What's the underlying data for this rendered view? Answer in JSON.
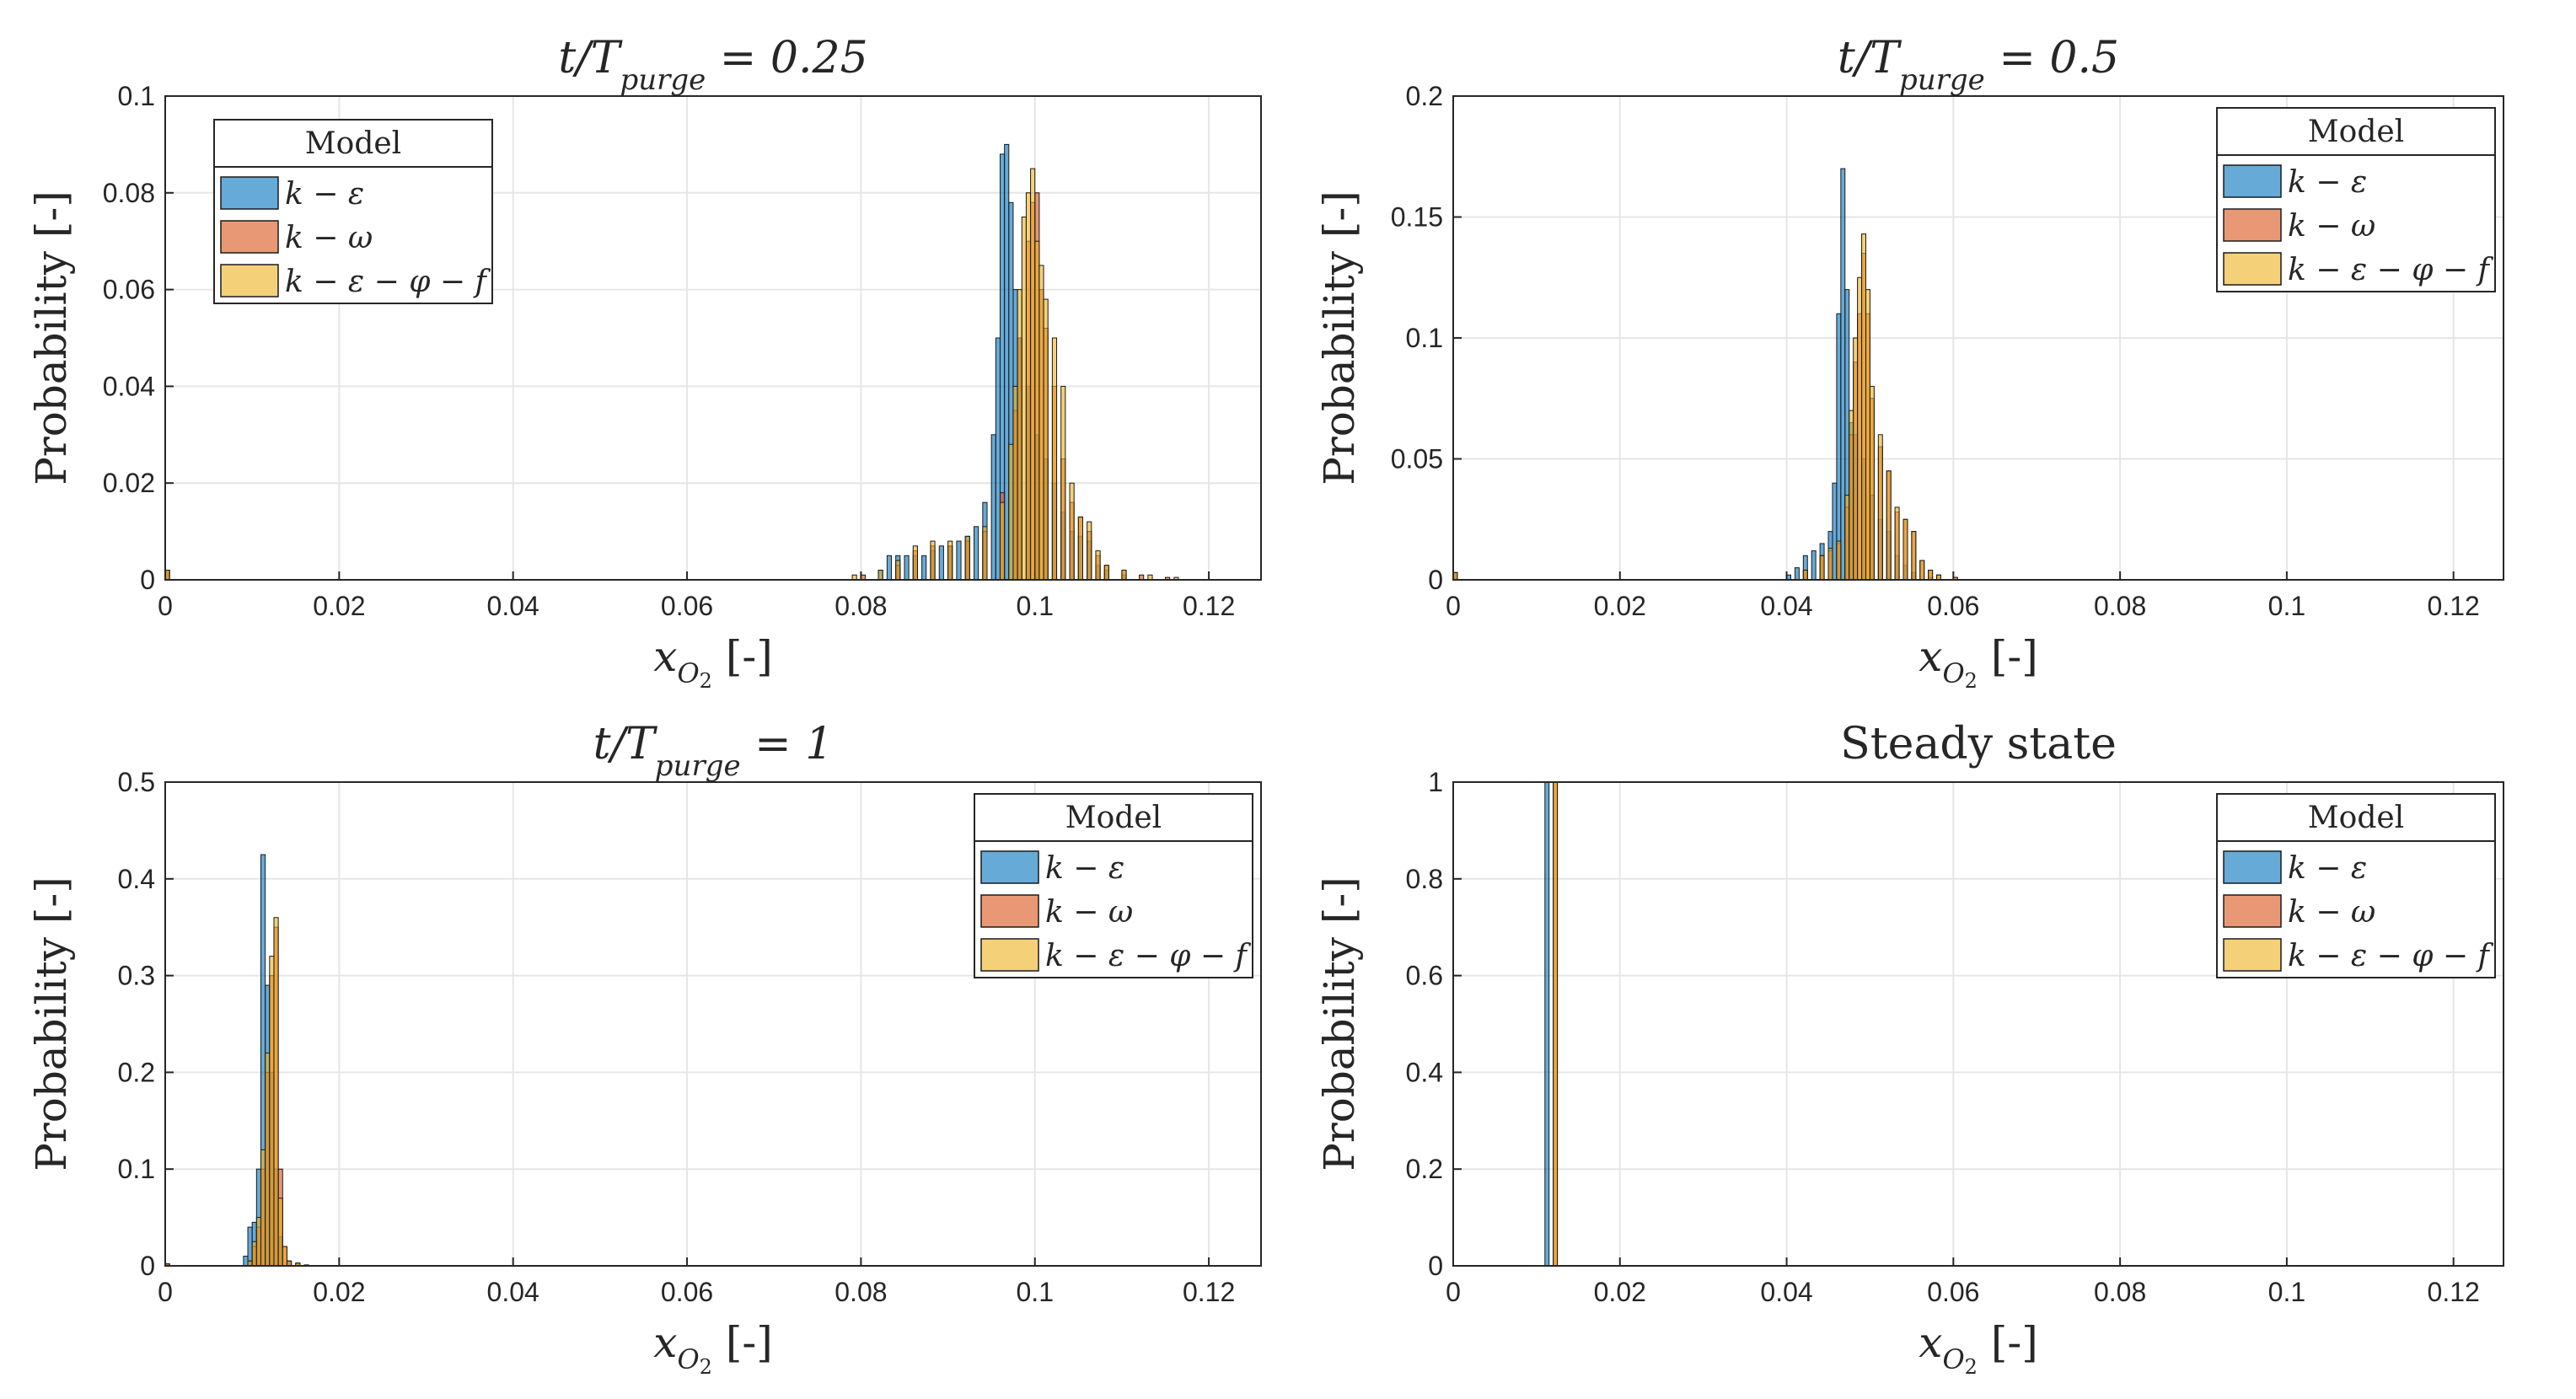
{
  "figure": {
    "bin_width": 0.0005
  },
  "chart_data": [
    {
      "type": "bar",
      "title": "t/T_purge = 0.25",
      "xlabel": "x_O2 [-]",
      "ylabel": "Probability [-]",
      "xlim": [
        0,
        0.126
      ],
      "ylim": [
        0,
        0.1
      ],
      "xticks": [
        "0",
        "0.02",
        "0.04",
        "0.06",
        "0.08",
        "0.1",
        "0.12"
      ],
      "yticks": [
        "0",
        "0.02",
        "0.04",
        "0.06",
        "0.08",
        "0.1"
      ],
      "grid": true,
      "legend": {
        "title": "Model",
        "position": "top-left",
        "entries": [
          "k − ε",
          "k − ω",
          "k − ε − φ − f"
        ]
      },
      "series": [
        {
          "name": "k − ε",
          "color": "#0072BD",
          "points": [
            [
              0.0,
              0.002
            ],
            [
              0.082,
              0.002
            ],
            [
              0.083,
              0.005
            ],
            [
              0.084,
              0.005
            ],
            [
              0.085,
              0.005
            ],
            [
              0.086,
              0.005
            ],
            [
              0.087,
              0.005
            ],
            [
              0.088,
              0.006
            ],
            [
              0.089,
              0.007
            ],
            [
              0.09,
              0.007
            ],
            [
              0.091,
              0.008
            ],
            [
              0.092,
              0.009
            ],
            [
              0.093,
              0.011
            ],
            [
              0.094,
              0.016
            ],
            [
              0.095,
              0.03
            ],
            [
              0.0955,
              0.05
            ],
            [
              0.096,
              0.088
            ],
            [
              0.0965,
              0.09
            ],
            [
              0.097,
              0.078
            ],
            [
              0.0975,
              0.06
            ],
            [
              0.098,
              0.05
            ],
            [
              0.099,
              0.04
            ],
            [
              0.1,
              0.03
            ],
            [
              0.101,
              0.025
            ],
            [
              0.102,
              0.02
            ],
            [
              0.103,
              0.014
            ],
            [
              0.104,
              0.01
            ],
            [
              0.105,
              0.009
            ],
            [
              0.106,
              0.008
            ],
            [
              0.107,
              0.003
            ],
            [
              0.108,
              0.002
            ],
            [
              0.11,
              0.001
            ]
          ]
        },
        {
          "name": "k − ω",
          "color": "#D95319",
          "points": [
            [
              0.0,
              0.002
            ],
            [
              0.08,
              0.001
            ],
            [
              0.084,
              0.003
            ],
            [
              0.086,
              0.006
            ],
            [
              0.088,
              0.007
            ],
            [
              0.09,
              0.007
            ],
            [
              0.092,
              0.008
            ],
            [
              0.094,
              0.01
            ],
            [
              0.096,
              0.018
            ],
            [
              0.0975,
              0.035
            ],
            [
              0.098,
              0.05
            ],
            [
              0.099,
              0.07
            ],
            [
              0.0995,
              0.078
            ],
            [
              0.1,
              0.08
            ],
            [
              0.1005,
              0.06
            ],
            [
              0.101,
              0.052
            ],
            [
              0.102,
              0.04
            ],
            [
              0.103,
              0.025
            ],
            [
              0.104,
              0.016
            ],
            [
              0.105,
              0.013
            ],
            [
              0.106,
              0.01
            ],
            [
              0.107,
              0.005
            ],
            [
              0.108,
              0.003
            ],
            [
              0.11,
              0.002
            ],
            [
              0.112,
              0.001
            ],
            [
              0.115,
              0.0005
            ]
          ]
        },
        {
          "name": "k − ε − φ − f",
          "color": "#EDB120",
          "points": [
            [
              0.0,
              0.002
            ],
            [
              0.079,
              0.001
            ],
            [
              0.082,
              0.002
            ],
            [
              0.084,
              0.004
            ],
            [
              0.086,
              0.007
            ],
            [
              0.088,
              0.008
            ],
            [
              0.09,
              0.008
            ],
            [
              0.092,
              0.009
            ],
            [
              0.094,
              0.011
            ],
            [
              0.096,
              0.016
            ],
            [
              0.097,
              0.028
            ],
            [
              0.0975,
              0.04
            ],
            [
              0.098,
              0.06
            ],
            [
              0.0985,
              0.075
            ],
            [
              0.099,
              0.08
            ],
            [
              0.0995,
              0.085
            ],
            [
              0.1,
              0.07
            ],
            [
              0.1005,
              0.065
            ],
            [
              0.101,
              0.058
            ],
            [
              0.102,
              0.05
            ],
            [
              0.103,
              0.04
            ],
            [
              0.104,
              0.02
            ],
            [
              0.105,
              0.013
            ],
            [
              0.106,
              0.012
            ],
            [
              0.107,
              0.006
            ],
            [
              0.108,
              0.003
            ],
            [
              0.11,
              0.002
            ],
            [
              0.113,
              0.001
            ],
            [
              0.116,
              0.0005
            ]
          ]
        }
      ]
    },
    {
      "type": "bar",
      "title": "t/T_purge = 0.5",
      "xlabel": "x_O2 [-]",
      "ylabel": "Probability [-]",
      "xlim": [
        0,
        0.126
      ],
      "ylim": [
        0,
        0.2
      ],
      "xticks": [
        "0",
        "0.02",
        "0.04",
        "0.06",
        "0.08",
        "0.1",
        "0.12"
      ],
      "yticks": [
        "0",
        "0.05",
        "0.1",
        "0.15",
        "0.2"
      ],
      "grid": true,
      "legend": {
        "title": "Model",
        "position": "top-right",
        "entries": [
          "k − ε",
          "k − ω",
          "k − ε − φ − f"
        ]
      },
      "series": [
        {
          "name": "k − ε",
          "color": "#0072BD",
          "points": [
            [
              0.0,
              0.003
            ],
            [
              0.04,
              0.002
            ],
            [
              0.041,
              0.005
            ],
            [
              0.042,
              0.01
            ],
            [
              0.043,
              0.012
            ],
            [
              0.044,
              0.015
            ],
            [
              0.045,
              0.02
            ],
            [
              0.0455,
              0.04
            ],
            [
              0.046,
              0.11
            ],
            [
              0.0465,
              0.17
            ],
            [
              0.047,
              0.12
            ],
            [
              0.0475,
              0.065
            ],
            [
              0.048,
              0.06
            ],
            [
              0.049,
              0.05
            ],
            [
              0.05,
              0.035
            ],
            [
              0.051,
              0.025
            ],
            [
              0.052,
              0.02
            ],
            [
              0.053,
              0.01
            ],
            [
              0.054,
              0.006
            ],
            [
              0.055,
              0.003
            ],
            [
              0.057,
              0.001
            ]
          ]
        },
        {
          "name": "k − ω",
          "color": "#D95319",
          "points": [
            [
              0.0,
              0.003
            ],
            [
              0.042,
              0.004
            ],
            [
              0.044,
              0.01
            ],
            [
              0.045,
              0.012
            ],
            [
              0.046,
              0.015
            ],
            [
              0.047,
              0.03
            ],
            [
              0.0475,
              0.06
            ],
            [
              0.048,
              0.09
            ],
            [
              0.0485,
              0.11
            ],
            [
              0.049,
              0.135
            ],
            [
              0.0495,
              0.11
            ],
            [
              0.05,
              0.075
            ],
            [
              0.051,
              0.055
            ],
            [
              0.052,
              0.045
            ],
            [
              0.053,
              0.028
            ],
            [
              0.054,
              0.025
            ],
            [
              0.055,
              0.02
            ],
            [
              0.056,
              0.008
            ],
            [
              0.057,
              0.004
            ],
            [
              0.058,
              0.002
            ],
            [
              0.06,
              0.001
            ]
          ]
        },
        {
          "name": "k − ε − φ − f",
          "color": "#EDB120",
          "points": [
            [
              0.0,
              0.003
            ],
            [
              0.042,
              0.004
            ],
            [
              0.044,
              0.01
            ],
            [
              0.045,
              0.013
            ],
            [
              0.046,
              0.016
            ],
            [
              0.047,
              0.035
            ],
            [
              0.0475,
              0.07
            ],
            [
              0.048,
              0.1
            ],
            [
              0.0485,
              0.125
            ],
            [
              0.049,
              0.143
            ],
            [
              0.0495,
              0.12
            ],
            [
              0.05,
              0.08
            ],
            [
              0.051,
              0.06
            ],
            [
              0.052,
              0.045
            ],
            [
              0.053,
              0.03
            ],
            [
              0.054,
              0.025
            ],
            [
              0.055,
              0.02
            ],
            [
              0.056,
              0.008
            ],
            [
              0.057,
              0.004
            ],
            [
              0.058,
              0.002
            ],
            [
              0.06,
              0.001
            ]
          ]
        }
      ]
    },
    {
      "type": "bar",
      "title": "t/T_purge = 1",
      "xlabel": "x_O2 [-]",
      "ylabel": "Probability [-]",
      "xlim": [
        0,
        0.126
      ],
      "ylim": [
        0,
        0.5
      ],
      "xticks": [
        "0",
        "0.02",
        "0.04",
        "0.06",
        "0.08",
        "0.1",
        "0.12"
      ],
      "yticks": [
        "0",
        "0.1",
        "0.2",
        "0.3",
        "0.4",
        "0.5"
      ],
      "grid": true,
      "legend": {
        "title": "Model",
        "position": "top-right",
        "entries": [
          "k − ε",
          "k − ω",
          "k − ε − φ − f"
        ]
      },
      "series": [
        {
          "name": "k − ε",
          "color": "#0072BD",
          "points": [
            [
              0.0,
              0.002
            ],
            [
              0.009,
              0.01
            ],
            [
              0.0095,
              0.04
            ],
            [
              0.01,
              0.045
            ],
            [
              0.0105,
              0.1
            ],
            [
              0.011,
              0.425
            ],
            [
              0.0115,
              0.29
            ],
            [
              0.012,
              0.2
            ],
            [
              0.0125,
              0.1
            ],
            [
              0.013,
              0.03
            ],
            [
              0.014,
              0.005
            ]
          ]
        },
        {
          "name": "k − ω",
          "color": "#D95319",
          "points": [
            [
              0.0,
              0.002
            ],
            [
              0.0095,
              0.005
            ],
            [
              0.01,
              0.02
            ],
            [
              0.0105,
              0.04
            ],
            [
              0.011,
              0.1
            ],
            [
              0.0115,
              0.2
            ],
            [
              0.012,
              0.3
            ],
            [
              0.0125,
              0.35
            ],
            [
              0.013,
              0.1
            ],
            [
              0.0135,
              0.02
            ],
            [
              0.014,
              0.005
            ],
            [
              0.015,
              0.002
            ]
          ]
        },
        {
          "name": "k − ε − φ − f",
          "color": "#EDB120",
          "points": [
            [
              0.0,
              0.002
            ],
            [
              0.0095,
              0.005
            ],
            [
              0.01,
              0.025
            ],
            [
              0.0105,
              0.05
            ],
            [
              0.011,
              0.12
            ],
            [
              0.0115,
              0.22
            ],
            [
              0.012,
              0.32
            ],
            [
              0.0125,
              0.36
            ],
            [
              0.013,
              0.07
            ],
            [
              0.0135,
              0.02
            ],
            [
              0.014,
              0.005
            ],
            [
              0.015,
              0.003
            ],
            [
              0.016,
              0.001
            ]
          ]
        }
      ]
    },
    {
      "type": "bar",
      "title": "Steady state",
      "xlabel": "x_O2 [-]",
      "ylabel": "Probability [-]",
      "xlim": [
        0,
        0.126
      ],
      "ylim": [
        0,
        1
      ],
      "xticks": [
        "0",
        "0.02",
        "0.04",
        "0.06",
        "0.08",
        "0.1",
        "0.12"
      ],
      "yticks": [
        "0",
        "0.2",
        "0.4",
        "0.6",
        "0.8",
        "1"
      ],
      "grid": true,
      "legend": {
        "title": "Model",
        "position": "top-right",
        "entries": [
          "k − ε",
          "k − ω",
          "k − ε − φ − f"
        ]
      },
      "series": [
        {
          "name": "k − ε",
          "color": "#0072BD",
          "points": [
            [
              0.011,
              1.0
            ]
          ]
        },
        {
          "name": "k − ω",
          "color": "#D95319",
          "points": [
            [
              0.012,
              1.0
            ]
          ]
        },
        {
          "name": "k − ε − φ − f",
          "color": "#EDB120",
          "points": [
            [
              0.012,
              1.0
            ]
          ]
        }
      ]
    }
  ]
}
